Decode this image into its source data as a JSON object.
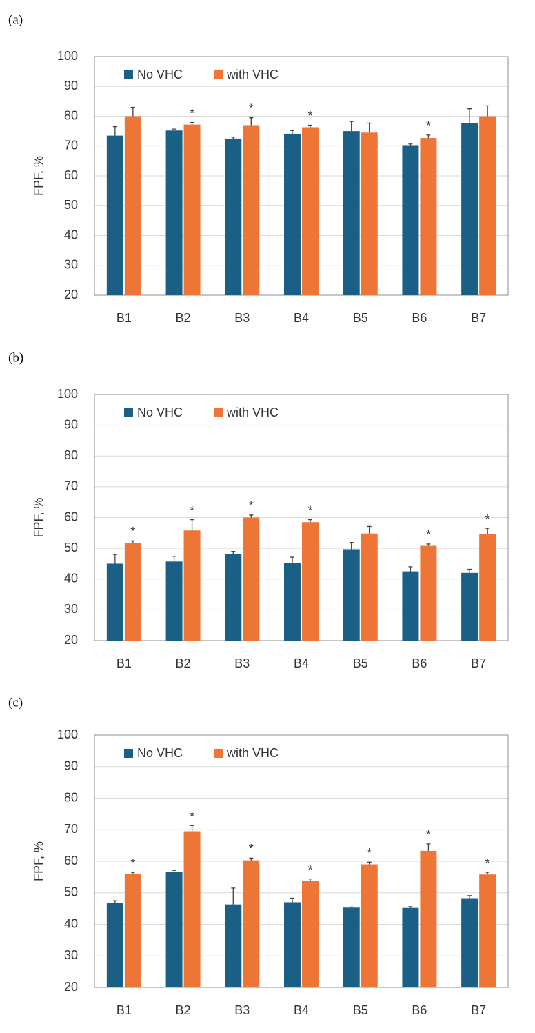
{
  "chart_data": [
    {
      "type": "bar",
      "panel_label": "(a)",
      "y_label": "FPF, %",
      "categories": [
        "B1",
        "B2",
        "B3",
        "B4",
        "B5",
        "B6",
        "B7"
      ],
      "series": [
        {
          "name": "No VHC",
          "color": "#1a5f85",
          "values": [
            73.5,
            75.2,
            72.5,
            74,
            75,
            70.3,
            77.8
          ],
          "errors": [
            3,
            0.5,
            0.5,
            1.2,
            3.2,
            0.4,
            4.7
          ],
          "significance": [
            null,
            null,
            null,
            null,
            null,
            null,
            null
          ]
        },
        {
          "name": "with VHC",
          "color": "#ed7535",
          "values": [
            80,
            77.2,
            77,
            76.3,
            74.5,
            72.7,
            80
          ],
          "errors": [
            3,
            0.7,
            2.5,
            0.7,
            3.2,
            1,
            3.5
          ],
          "significance": [
            null,
            "*",
            "*",
            "*",
            null,
            "*",
            null
          ]
        }
      ],
      "ylim": [
        20,
        100
      ],
      "yticks": [
        20,
        30,
        40,
        50,
        60,
        70,
        80,
        90,
        100
      ],
      "grid": true,
      "legend": "upper-left"
    },
    {
      "type": "bar",
      "panel_label": "(b)",
      "y_label": "FPF, %",
      "categories": [
        "B1",
        "B2",
        "B3",
        "B4",
        "B5",
        "B6",
        "B7"
      ],
      "series": [
        {
          "name": "No VHC",
          "color": "#1a5f85",
          "values": [
            45,
            45.7,
            48.2,
            45.3,
            49.7,
            42.5,
            42
          ],
          "errors": [
            3,
            1.7,
            0.8,
            1.8,
            2.2,
            1.5,
            1.2
          ],
          "significance": [
            null,
            null,
            null,
            null,
            null,
            null,
            null
          ]
        },
        {
          "name": "with VHC",
          "color": "#ed7535",
          "values": [
            51.7,
            55.8,
            60,
            58.5,
            54.8,
            50.8,
            54.7
          ],
          "errors": [
            0.7,
            3.5,
            0.8,
            0.8,
            2.3,
            0.6,
            1.8
          ],
          "significance": [
            "*",
            "*",
            "*",
            "*",
            null,
            "*",
            "*"
          ]
        }
      ],
      "ylim": [
        20,
        100
      ],
      "yticks": [
        20,
        30,
        40,
        50,
        60,
        70,
        80,
        90,
        100
      ],
      "grid": true,
      "legend": "upper-left"
    },
    {
      "type": "bar",
      "panel_label": "(c)",
      "y_label": "FPF, %",
      "categories": [
        "B1",
        "B2",
        "B3",
        "B4",
        "B5",
        "B6",
        "B7"
      ],
      "series": [
        {
          "name": "No VHC",
          "color": "#1a5f85",
          "values": [
            46.7,
            56.5,
            46.3,
            47,
            45.3,
            45.2,
            48.3
          ],
          "errors": [
            0.8,
            0.6,
            5.2,
            1.3,
            0.2,
            0.4,
            0.8
          ],
          "significance": [
            null,
            null,
            null,
            null,
            null,
            null,
            null
          ]
        },
        {
          "name": "with VHC",
          "color": "#ed7535",
          "values": [
            56,
            69.5,
            60.3,
            53.8,
            59,
            63.3,
            55.8
          ],
          "errors": [
            0.5,
            1.8,
            0.7,
            0.6,
            0.7,
            2.2,
            0.7
          ],
          "significance": [
            "*",
            "*",
            "*",
            "*",
            "*",
            "*",
            "*"
          ]
        }
      ],
      "ylim": [
        20,
        100
      ],
      "yticks": [
        20,
        30,
        40,
        50,
        60,
        70,
        80,
        90,
        100
      ],
      "grid": true,
      "legend": "upper-left"
    }
  ]
}
